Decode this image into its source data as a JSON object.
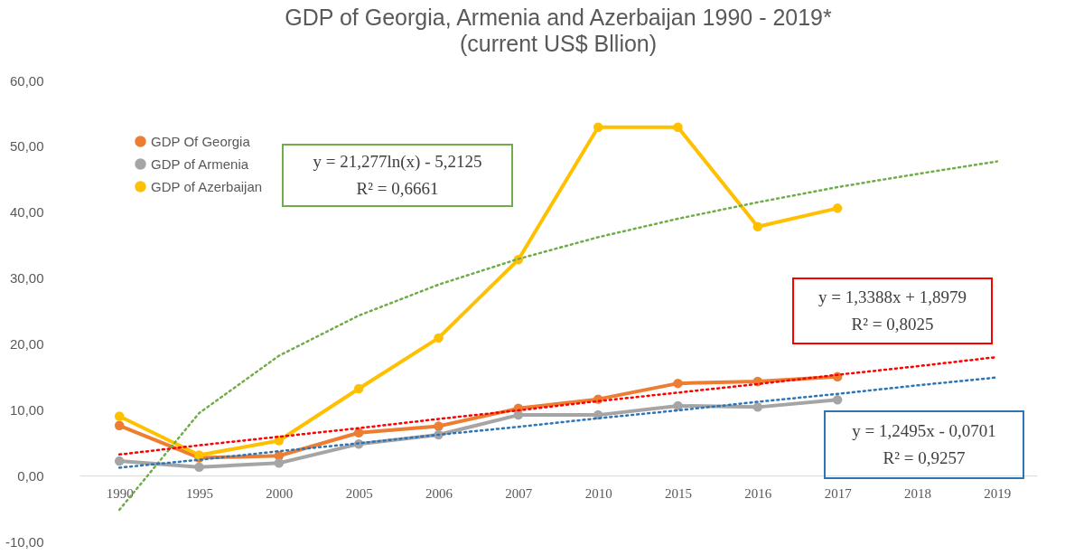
{
  "chart_data": {
    "type": "line",
    "title": "GDP of Georgia, Armenia and Azerbaijan 1990 - 2019*",
    "subtitle": "(current US$ Bllion)",
    "categories": [
      "1990",
      "1995",
      "2000",
      "2005",
      "2006",
      "2007",
      "2010",
      "2015",
      "2016",
      "2017",
      "2018",
      "2019"
    ],
    "series": [
      {
        "name": "GDP Of Georgia",
        "color": "#ed7d31",
        "marker": "circle",
        "line_style": "solid",
        "values": [
          7.6,
          2.7,
          3.0,
          6.5,
          7.5,
          10.2,
          11.6,
          14.0,
          14.3,
          15.0,
          null,
          null
        ]
      },
      {
        "name": "GDP of Armenia",
        "color": "#a5a5a5",
        "marker": "circle",
        "line_style": "solid",
        "values": [
          2.2,
          1.3,
          1.9,
          4.8,
          6.2,
          9.2,
          9.2,
          10.6,
          10.4,
          11.5,
          null,
          null
        ]
      },
      {
        "name": "GDP of Azerbaijan",
        "color": "#ffc000",
        "marker": "circle",
        "line_style": "solid",
        "values": [
          9.0,
          3.1,
          5.3,
          13.2,
          20.9,
          32.8,
          52.9,
          52.9,
          37.8,
          40.6,
          null,
          null
        ]
      },
      {
        "color": "#70ad47",
        "marker": "none",
        "line_style": "dotted",
        "values": [
          -5.2,
          9.5,
          18.2,
          24.3,
          29.0,
          32.9,
          36.2,
          39.0,
          41.5,
          43.8,
          45.8,
          47.7
        ]
      },
      {
        "color": "#ff0000",
        "marker": "none",
        "line_style": "dotted",
        "values": [
          3.2,
          4.6,
          5.9,
          7.2,
          8.6,
          9.9,
          11.3,
          12.6,
          13.9,
          15.3,
          16.6,
          18.0
        ]
      },
      {
        "color": "#2e75b6",
        "marker": "none",
        "line_style": "dotted",
        "values": [
          1.2,
          2.4,
          3.7,
          4.9,
          6.2,
          7.4,
          8.7,
          9.9,
          11.2,
          12.4,
          13.7,
          14.9
        ]
      }
    ],
    "ylim": [
      -10,
      60
    ],
    "yticks": [
      {
        "value": -10,
        "label": "-10,00"
      },
      {
        "value": 0,
        "label": "0,00"
      },
      {
        "value": 10,
        "label": "10,00"
      },
      {
        "value": 20,
        "label": "20,00"
      },
      {
        "value": 30,
        "label": "30,00"
      },
      {
        "value": 40,
        "label": "40,00"
      },
      {
        "value": 50,
        "label": "50,00"
      },
      {
        "value": 60,
        "label": "60,00"
      }
    ],
    "annotations": [
      "y = 21,277ln(x) - 5,2125\nR² = 0,6661",
      "y = 1,3388x + 1,8979\nR² = 0,8025",
      "y = 1,2495x - 0,0701\nR² = 0,9257"
    ],
    "grid": false,
    "legend": "top left"
  }
}
